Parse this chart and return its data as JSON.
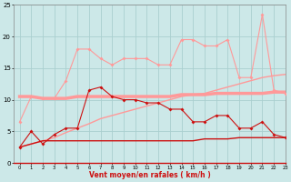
{
  "x": [
    0,
    1,
    2,
    3,
    4,
    5,
    6,
    7,
    8,
    9,
    10,
    11,
    12,
    13,
    14,
    15,
    16,
    17,
    18,
    19,
    20,
    21,
    22,
    23
  ],
  "line_top": [
    6.5,
    10.5,
    10.2,
    10.2,
    13.0,
    18.0,
    18.0,
    16.5,
    15.5,
    16.5,
    16.5,
    16.5,
    15.5,
    15.5,
    19.5,
    19.5,
    18.5,
    18.5,
    19.5,
    13.5,
    13.5,
    23.5,
    11.5,
    11.0
  ],
  "line_horiz": [
    10.5,
    10.5,
    10.2,
    10.2,
    10.2,
    10.5,
    10.5,
    10.5,
    10.5,
    10.5,
    10.5,
    10.5,
    10.5,
    10.5,
    10.8,
    10.8,
    10.8,
    11.0,
    11.0,
    11.0,
    11.0,
    11.0,
    11.2,
    11.2
  ],
  "line_rise": [
    2.5,
    3.0,
    3.5,
    4.0,
    4.8,
    5.5,
    6.2,
    7.0,
    7.5,
    8.0,
    8.5,
    9.0,
    9.5,
    10.0,
    10.5,
    10.8,
    11.0,
    11.5,
    12.0,
    12.5,
    13.0,
    13.5,
    13.8,
    14.0
  ],
  "line_mid": [
    2.5,
    5.0,
    3.0,
    4.5,
    5.5,
    5.5,
    11.5,
    12.0,
    10.5,
    10.0,
    10.0,
    9.5,
    9.5,
    8.5,
    8.5,
    6.5,
    6.5,
    7.5,
    7.5,
    5.5,
    5.5,
    6.5,
    4.5,
    4.0
  ],
  "line_bot": [
    2.5,
    3.0,
    3.5,
    3.5,
    3.5,
    3.5,
    3.5,
    3.5,
    3.5,
    3.5,
    3.5,
    3.5,
    3.5,
    3.5,
    3.5,
    3.5,
    3.8,
    3.8,
    3.8,
    4.0,
    4.0,
    4.0,
    4.0,
    4.0
  ],
  "bg_color": "#cce8e8",
  "grid_color": "#aacfcf",
  "color_light": "#ff9999",
  "color_dark": "#cc1111",
  "xlabel": "Vent moyen/en rafales ( km/h )",
  "ylim": [
    0,
    25
  ],
  "xlim": [
    -0.5,
    23
  ],
  "yticks": [
    0,
    5,
    10,
    15,
    20,
    25
  ],
  "xticks": [
    0,
    1,
    2,
    3,
    4,
    5,
    6,
    7,
    8,
    9,
    10,
    11,
    12,
    13,
    14,
    15,
    16,
    17,
    18,
    19,
    20,
    21,
    22,
    23
  ]
}
